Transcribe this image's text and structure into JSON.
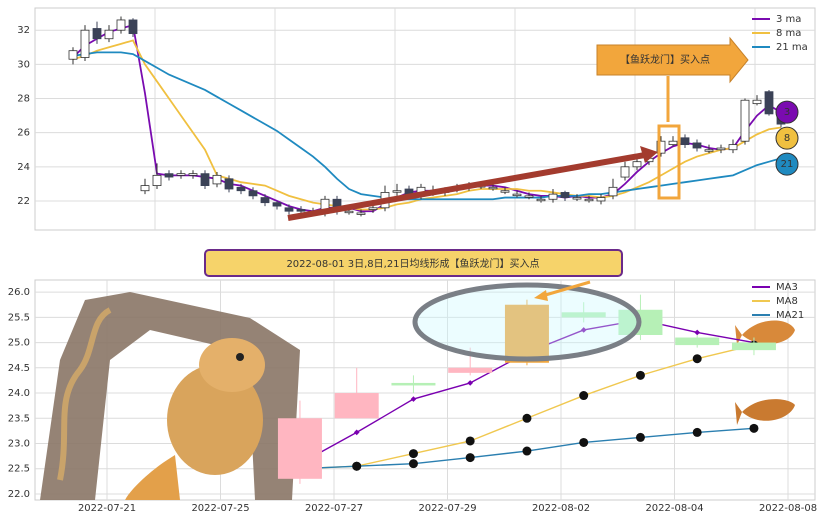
{
  "chart_data": [
    {
      "type": "candlestick",
      "annotation": "【鱼跃龙门】买入点",
      "legend": "upper right",
      "grid": true,
      "up_color": "#ffffff",
      "down_color": "#3b4257",
      "ylim": [
        20.3,
        33.3
      ],
      "yticks": [
        22,
        24,
        26,
        28,
        30,
        32
      ],
      "open": [
        30.3,
        30.4,
        32.1,
        31.5,
        32.0,
        32.6,
        22.6,
        22.9,
        23.6,
        23.5,
        23.5,
        23.6,
        23.0,
        23.3,
        22.8,
        22.6,
        22.2,
        21.9,
        21.6,
        21.5,
        21.3,
        21.3,
        22.1,
        21.4,
        21.3,
        21.5,
        21.6,
        22.6,
        22.7,
        22.3,
        22.6,
        22.5,
        22.7,
        22.8,
        22.9,
        22.8,
        22.6,
        22.4,
        22.3,
        22.1,
        22.1,
        22.5,
        22.2,
        22.1,
        22.0,
        22.3,
        23.4,
        24.0,
        24.3,
        24.8,
        25.3,
        25.7,
        25.4,
        25.0,
        25.0,
        25.0,
        25.5,
        27.7,
        28.4,
        27.3
      ],
      "high": [
        31.0,
        32.3,
        32.5,
        32.3,
        32.8,
        32.7,
        23.3,
        24.2,
        23.8,
        23.8,
        23.8,
        23.8,
        23.7,
        23.5,
        23.0,
        22.8,
        22.4,
        22.0,
        21.8,
        21.7,
        21.6,
        22.3,
        22.3,
        21.6,
        21.5,
        21.8,
        22.9,
        23.0,
        22.9,
        23.0,
        22.9,
        22.8,
        23.0,
        23.1,
        23.1,
        23.0,
        22.8,
        22.6,
        22.5,
        22.3,
        22.7,
        22.6,
        22.4,
        22.3,
        22.4,
        23.3,
        24.3,
        24.6,
        24.8,
        25.8,
        25.8,
        25.9,
        25.6,
        25.3,
        25.3,
        25.6,
        28.0,
        28.2,
        28.5,
        27.5
      ],
      "low": [
        30.0,
        30.2,
        31.2,
        31.3,
        31.8,
        31.6,
        22.4,
        22.7,
        23.2,
        23.3,
        23.3,
        22.7,
        22.8,
        22.5,
        22.4,
        22.1,
        21.7,
        21.5,
        21.2,
        21.2,
        21.1,
        21.1,
        21.2,
        21.2,
        21.1,
        21.3,
        21.4,
        22.3,
        22.1,
        22.1,
        22.3,
        22.3,
        22.5,
        22.6,
        22.7,
        22.6,
        22.4,
        22.2,
        22.1,
        21.9,
        21.9,
        22.0,
        22.0,
        21.9,
        21.8,
        22.1,
        23.2,
        23.8,
        24.1,
        24.6,
        25.2,
        25.1,
        24.9,
        24.8,
        24.8,
        24.8,
        25.3,
        27.6,
        27.0,
        26.3
      ],
      "close": [
        30.8,
        32.0,
        31.5,
        32.0,
        32.6,
        31.8,
        22.9,
        23.5,
        23.4,
        23.6,
        23.6,
        22.9,
        23.5,
        22.7,
        22.6,
        22.3,
        21.9,
        21.7,
        21.4,
        21.4,
        21.4,
        22.1,
        21.4,
        21.4,
        21.3,
        21.6,
        22.5,
        22.6,
        22.3,
        22.8,
        22.6,
        22.6,
        22.8,
        22.9,
        22.9,
        22.8,
        22.6,
        22.4,
        22.3,
        22.1,
        22.4,
        22.2,
        22.2,
        22.1,
        22.2,
        22.8,
        24.0,
        24.3,
        24.5,
        25.5,
        25.5,
        25.3,
        25.1,
        25.0,
        25.1,
        25.3,
        27.9,
        27.9,
        27.1,
        26.5
      ],
      "series": [
        {
          "name": "3 ma",
          "color": "#7a0bb0",
          "end_label": "3",
          "values": [
            30.4,
            31.1,
            31.5,
            31.9,
            32.1,
            32.3,
            28.3,
            23.6,
            23.5,
            23.5,
            23.5,
            23.4,
            23.3,
            23.0,
            22.9,
            22.6,
            22.3,
            22.0,
            21.7,
            21.5,
            21.4,
            21.6,
            21.6,
            21.6,
            21.4,
            21.4,
            21.8,
            22.2,
            22.5,
            22.6,
            22.6,
            22.7,
            22.7,
            22.8,
            22.9,
            22.9,
            22.8,
            22.6,
            22.4,
            22.3,
            22.3,
            22.2,
            22.3,
            22.2,
            22.2,
            22.4,
            23.0,
            23.7,
            24.3,
            24.8,
            25.2,
            25.4,
            25.3,
            25.1,
            25.0,
            25.1,
            26.1,
            27.0,
            27.6,
            27.2
          ]
        },
        {
          "name": "8 ma",
          "color": "#f0c040",
          "end_label": "8",
          "values": [
            30.3,
            30.5,
            30.8,
            31.0,
            31.2,
            31.4,
            30.0,
            29.0,
            28.0,
            27.0,
            26.0,
            25.0,
            23.5,
            23.3,
            23.1,
            23.0,
            22.9,
            22.6,
            22.3,
            22.1,
            21.9,
            21.8,
            21.7,
            21.6,
            21.5,
            21.5,
            21.6,
            21.8,
            21.9,
            22.1,
            22.2,
            22.3,
            22.4,
            22.6,
            22.7,
            22.7,
            22.7,
            22.7,
            22.6,
            22.6,
            22.5,
            22.4,
            22.3,
            22.3,
            22.2,
            22.3,
            22.5,
            22.8,
            23.1,
            23.5,
            23.9,
            24.3,
            24.6,
            24.8,
            25.0,
            25.1,
            25.5,
            25.9,
            26.2,
            26.3
          ]
        },
        {
          "name": "21 ma",
          "color": "#1f8ac0",
          "end_label": "21",
          "values": [
            30.5,
            30.6,
            30.7,
            30.7,
            30.7,
            30.6,
            30.2,
            29.8,
            29.4,
            29.1,
            28.8,
            28.5,
            28.1,
            27.7,
            27.3,
            26.9,
            26.5,
            26.1,
            25.6,
            25.1,
            24.6,
            24.0,
            23.3,
            22.7,
            22.4,
            22.3,
            22.2,
            22.1,
            22.1,
            22.1,
            22.1,
            22.1,
            22.1,
            22.1,
            22.1,
            22.1,
            22.2,
            22.2,
            22.2,
            22.2,
            22.3,
            22.3,
            22.3,
            22.4,
            22.4,
            22.5,
            22.6,
            22.7,
            22.8,
            22.9,
            23.0,
            23.1,
            23.2,
            23.3,
            23.4,
            23.5,
            23.8,
            24.1,
            24.3,
            24.5
          ]
        }
      ]
    },
    {
      "type": "candlestick",
      "title": "2022-08-01 3日,8日,21日均线形成【鱼跃龙门】买入点",
      "legend": "upper right",
      "grid": true,
      "categories": [
        "2022-07-21",
        null,
        "2022-07-25",
        null,
        "2022-07-27",
        null,
        "2022-07-29",
        null,
        "2022-08-02",
        null,
        "2022-08-04",
        null,
        "2022-08-08"
      ],
      "ylim": [
        21.88,
        26.24
      ],
      "yticks": [
        {
          "value": 22,
          "label": "22.0"
        },
        22.5,
        {
          "value": 23,
          "label": "23.0"
        },
        23.5,
        {
          "value": 24,
          "label": "24.0"
        },
        24.5,
        {
          "value": 25,
          "label": "25.0"
        },
        25.5,
        {
          "value": 26,
          "label": "26.0"
        }
      ],
      "open": [
        null,
        null,
        null,
        22.3,
        23.5,
        24.15,
        24.4,
        24.6,
        25.6,
        25.65,
        25.1,
        25.0,
        null
      ],
      "high": [
        null,
        null,
        null,
        23.85,
        24.5,
        24.35,
        24.9,
        25.85,
        25.8,
        25.95,
        25.15,
        25.1,
        null
      ],
      "low": [
        null,
        null,
        null,
        22.2,
        23.5,
        24.0,
        24.35,
        24.55,
        25.4,
        25.05,
        24.9,
        24.75,
        null
      ],
      "close": [
        null,
        null,
        null,
        23.5,
        24.0,
        24.2,
        24.5,
        25.75,
        25.5,
        25.15,
        24.95,
        24.85,
        null
      ],
      "colors": [
        null,
        null,
        null,
        "#ffb6c1",
        "#ffb6c1",
        "#b6f0b6",
        "#ffb6c1",
        "#f2a63c",
        "#b6f0b6",
        "#b6f0b6",
        "#b6f0b6",
        "#b6f0b6",
        null
      ],
      "series": [
        {
          "name": "MA3",
          "color": "#7a00b0",
          "values": [
            null,
            null,
            null,
            22.6,
            23.22,
            23.88,
            24.2,
            24.8,
            25.25,
            25.45,
            25.2,
            25.0,
            null
          ]
        },
        {
          "name": "MA8",
          "color": "#f0c850",
          "values": [
            null,
            null,
            null,
            22.5,
            22.55,
            22.8,
            23.05,
            23.5,
            23.95,
            24.35,
            24.68,
            24.95,
            null
          ]
        },
        {
          "name": "MA21",
          "color": "#2b7fb0",
          "values": [
            null,
            null,
            null,
            22.5,
            22.55,
            22.6,
            22.72,
            22.85,
            23.02,
            23.12,
            23.22,
            23.3,
            null
          ]
        }
      ]
    }
  ]
}
